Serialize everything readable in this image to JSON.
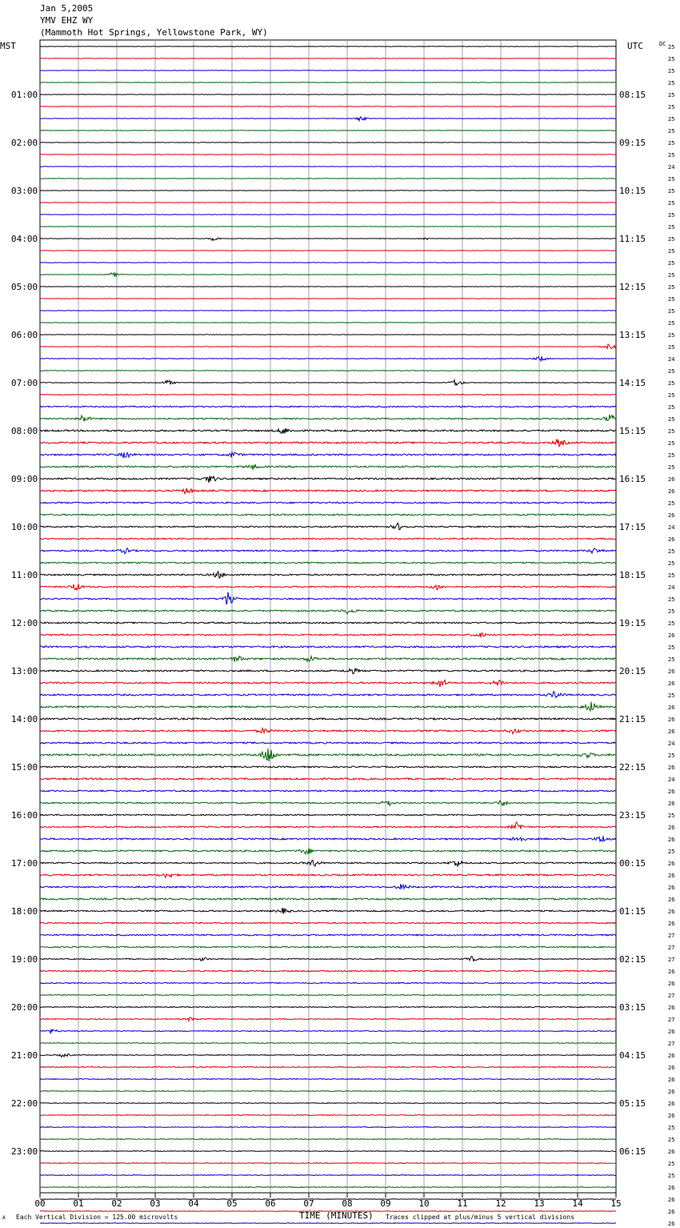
{
  "header": {
    "date": "Jan 5,2005",
    "station": "YMV EHZ WY",
    "location": "(Mammoth Hot Springs, Yellowstone Park, WY)"
  },
  "left_axis_title": "MST",
  "right_axis_title": "UTC",
  "dc_label": "DC",
  "footer": {
    "left_mark": "A",
    "scale_text": "Each Vertical Division =  125.00 microvolts",
    "xlabel": "TIME (MINUTES)",
    "clip_text": "Traces clipped at plus/minus 5 vertical divisions"
  },
  "colors": {
    "black": "#000000",
    "red": "#dd0000",
    "blue": "#0000cc",
    "green": "#006600",
    "grid": "#8888aa"
  },
  "chart_data": {
    "type": "line",
    "title": "",
    "xlabel": "TIME (MINUTES)",
    "ylabel": "",
    "xlim": [
      0,
      15
    ],
    "x_ticks": [
      "00",
      "01",
      "02",
      "03",
      "04",
      "05",
      "06",
      "07",
      "08",
      "09",
      "10",
      "11",
      "12",
      "13",
      "14",
      "15"
    ],
    "left_hour_labels": [
      "01:00",
      "02:00",
      "03:00",
      "04:00",
      "05:00",
      "06:00",
      "07:00",
      "08:00",
      "09:00",
      "10:00",
      "11:00",
      "12:00",
      "13:00",
      "14:00",
      "15:00",
      "16:00",
      "17:00",
      "18:00",
      "19:00",
      "20:00",
      "21:00",
      "22:00",
      "23:00"
    ],
    "right_hour_labels": [
      "08:15",
      "09:15",
      "10:15",
      "11:15",
      "12:15",
      "13:15",
      "14:15",
      "15:15",
      "16:15",
      "17:15",
      "18:15",
      "19:15",
      "20:15",
      "21:15",
      "22:15",
      "23:15",
      "00:15",
      "01:15",
      "02:15",
      "03:15",
      "04:15",
      "05:15",
      "06:15"
    ],
    "trace_colors": [
      "black",
      "red",
      "blue",
      "green"
    ],
    "dc_values": [
      25,
      25,
      25,
      25,
      25,
      25,
      25,
      25,
      25,
      25,
      24,
      25,
      25,
      25,
      25,
      25,
      25,
      25,
      25,
      25,
      25,
      25,
      25,
      25,
      25,
      25,
      24,
      25,
      25,
      25,
      25,
      25,
      25,
      25,
      25,
      25,
      26,
      26,
      25,
      26,
      24,
      26,
      25,
      25,
      25,
      24,
      25,
      25,
      25,
      26,
      25,
      25,
      26,
      26,
      25,
      26,
      26,
      26,
      24,
      25,
      26,
      24,
      26,
      26,
      25,
      26,
      26,
      25,
      26,
      26,
      26,
      26,
      26,
      26,
      27,
      27,
      27,
      26,
      26,
      27,
      26,
      27,
      26,
      27,
      26,
      26,
      26,
      26,
      26,
      26,
      25,
      25,
      26,
      25,
      25,
      26,
      26,
      26,
      26,
      26,
      26,
      26,
      26,
      25
    ],
    "noise_levels": [
      0.3,
      0.3,
      0.3,
      0.3,
      0.3,
      0.3,
      0.3,
      0.3,
      0.3,
      0.3,
      0.3,
      0.3,
      0.3,
      0.3,
      0.3,
      0.3,
      0.3,
      0.3,
      0.3,
      0.3,
      0.3,
      0.3,
      0.3,
      0.3,
      0.3,
      0.3,
      0.4,
      0.4,
      0.4,
      0.5,
      0.8,
      0.8,
      1.0,
      1.0,
      1.0,
      1.0,
      1.0,
      1.0,
      0.9,
      0.9,
      0.8,
      0.8,
      0.9,
      0.8,
      0.9,
      0.8,
      0.8,
      0.9,
      0.9,
      0.9,
      1.1,
      1.1,
      1.0,
      1.0,
      1.0,
      1.0,
      1.1,
      1.0,
      1.0,
      1.2,
      0.9,
      1.1,
      0.9,
      0.8,
      0.8,
      0.9,
      1.0,
      1.0,
      0.9,
      1.0,
      1.0,
      1.1,
      0.9,
      0.8,
      0.9,
      0.8,
      0.6,
      0.8,
      0.7,
      0.6,
      0.6,
      0.6,
      0.6,
      0.5,
      0.5,
      0.6,
      0.6,
      0.5,
      0.5,
      0.5,
      0.5,
      0.5,
      0.5,
      0.5,
      0.5,
      0.5,
      0.4,
      0.4,
      0.4,
      0.4,
      0.4,
      0.4,
      0.4,
      0.4
    ],
    "events": [
      {
        "row": 6,
        "minute": 8.3,
        "amp": 3
      },
      {
        "row": 16,
        "minute": 4.5,
        "amp": 2
      },
      {
        "row": 16,
        "minute": 10.0,
        "amp": 1.5
      },
      {
        "row": 19,
        "minute": 1.9,
        "amp": 2
      },
      {
        "row": 25,
        "minute": 14.8,
        "amp": 3
      },
      {
        "row": 26,
        "minute": 13.0,
        "amp": 3
      },
      {
        "row": 28,
        "minute": 3.3,
        "amp": 3
      },
      {
        "row": 28,
        "minute": 10.8,
        "amp": 4
      },
      {
        "row": 31,
        "minute": 1.1,
        "amp": 4
      },
      {
        "row": 31,
        "minute": 14.8,
        "amp": 5
      },
      {
        "row": 32,
        "minute": 6.3,
        "amp": 4
      },
      {
        "row": 33,
        "minute": 13.5,
        "amp": 4
      },
      {
        "row": 34,
        "minute": 2.2,
        "amp": 3
      },
      {
        "row": 34,
        "minute": 5.0,
        "amp": 3
      },
      {
        "row": 35,
        "minute": 5.5,
        "amp": 3
      },
      {
        "row": 36,
        "minute": 4.4,
        "amp": 4
      },
      {
        "row": 37,
        "minute": 3.8,
        "amp": 3
      },
      {
        "row": 40,
        "minute": 9.3,
        "amp": 4
      },
      {
        "row": 42,
        "minute": 14.4,
        "amp": 3
      },
      {
        "row": 42,
        "minute": 2.2,
        "amp": 3
      },
      {
        "row": 44,
        "minute": 4.6,
        "amp": 4
      },
      {
        "row": 45,
        "minute": 0.9,
        "amp": 4
      },
      {
        "row": 45,
        "minute": 10.3,
        "amp": 4
      },
      {
        "row": 46,
        "minute": 4.9,
        "amp": 9
      },
      {
        "row": 47,
        "minute": 8.0,
        "amp": 3
      },
      {
        "row": 49,
        "minute": 11.4,
        "amp": 3
      },
      {
        "row": 51,
        "minute": 5.1,
        "amp": 3
      },
      {
        "row": 51,
        "minute": 7.0,
        "amp": 3
      },
      {
        "row": 52,
        "minute": 8.1,
        "amp": 3
      },
      {
        "row": 53,
        "minute": 10.4,
        "amp": 5
      },
      {
        "row": 53,
        "minute": 11.9,
        "amp": 4
      },
      {
        "row": 54,
        "minute": 13.4,
        "amp": 4
      },
      {
        "row": 55,
        "minute": 14.3,
        "amp": 7
      },
      {
        "row": 57,
        "minute": 5.8,
        "amp": 3
      },
      {
        "row": 57,
        "minute": 12.3,
        "amp": 3
      },
      {
        "row": 59,
        "minute": 5.9,
        "amp": 12
      },
      {
        "row": 59,
        "minute": 14.2,
        "amp": 3
      },
      {
        "row": 63,
        "minute": 9.0,
        "amp": 4
      },
      {
        "row": 63,
        "minute": 12.0,
        "amp": 3
      },
      {
        "row": 65,
        "minute": 12.4,
        "amp": 5
      },
      {
        "row": 66,
        "minute": 12.4,
        "amp": 4
      },
      {
        "row": 66,
        "minute": 14.6,
        "amp": 4
      },
      {
        "row": 67,
        "minute": 6.9,
        "amp": 4
      },
      {
        "row": 68,
        "minute": 7.1,
        "amp": 4
      },
      {
        "row": 68,
        "minute": 10.8,
        "amp": 4
      },
      {
        "row": 69,
        "minute": 3.3,
        "amp": 3
      },
      {
        "row": 70,
        "minute": 9.4,
        "amp": 3
      },
      {
        "row": 72,
        "minute": 6.3,
        "amp": 3
      },
      {
        "row": 76,
        "minute": 4.2,
        "amp": 2
      },
      {
        "row": 76,
        "minute": 11.2,
        "amp": 3
      },
      {
        "row": 81,
        "minute": 3.9,
        "amp": 2
      },
      {
        "row": 82,
        "minute": 0.3,
        "amp": 2
      },
      {
        "row": 84,
        "minute": 0.6,
        "amp": 2
      }
    ]
  }
}
